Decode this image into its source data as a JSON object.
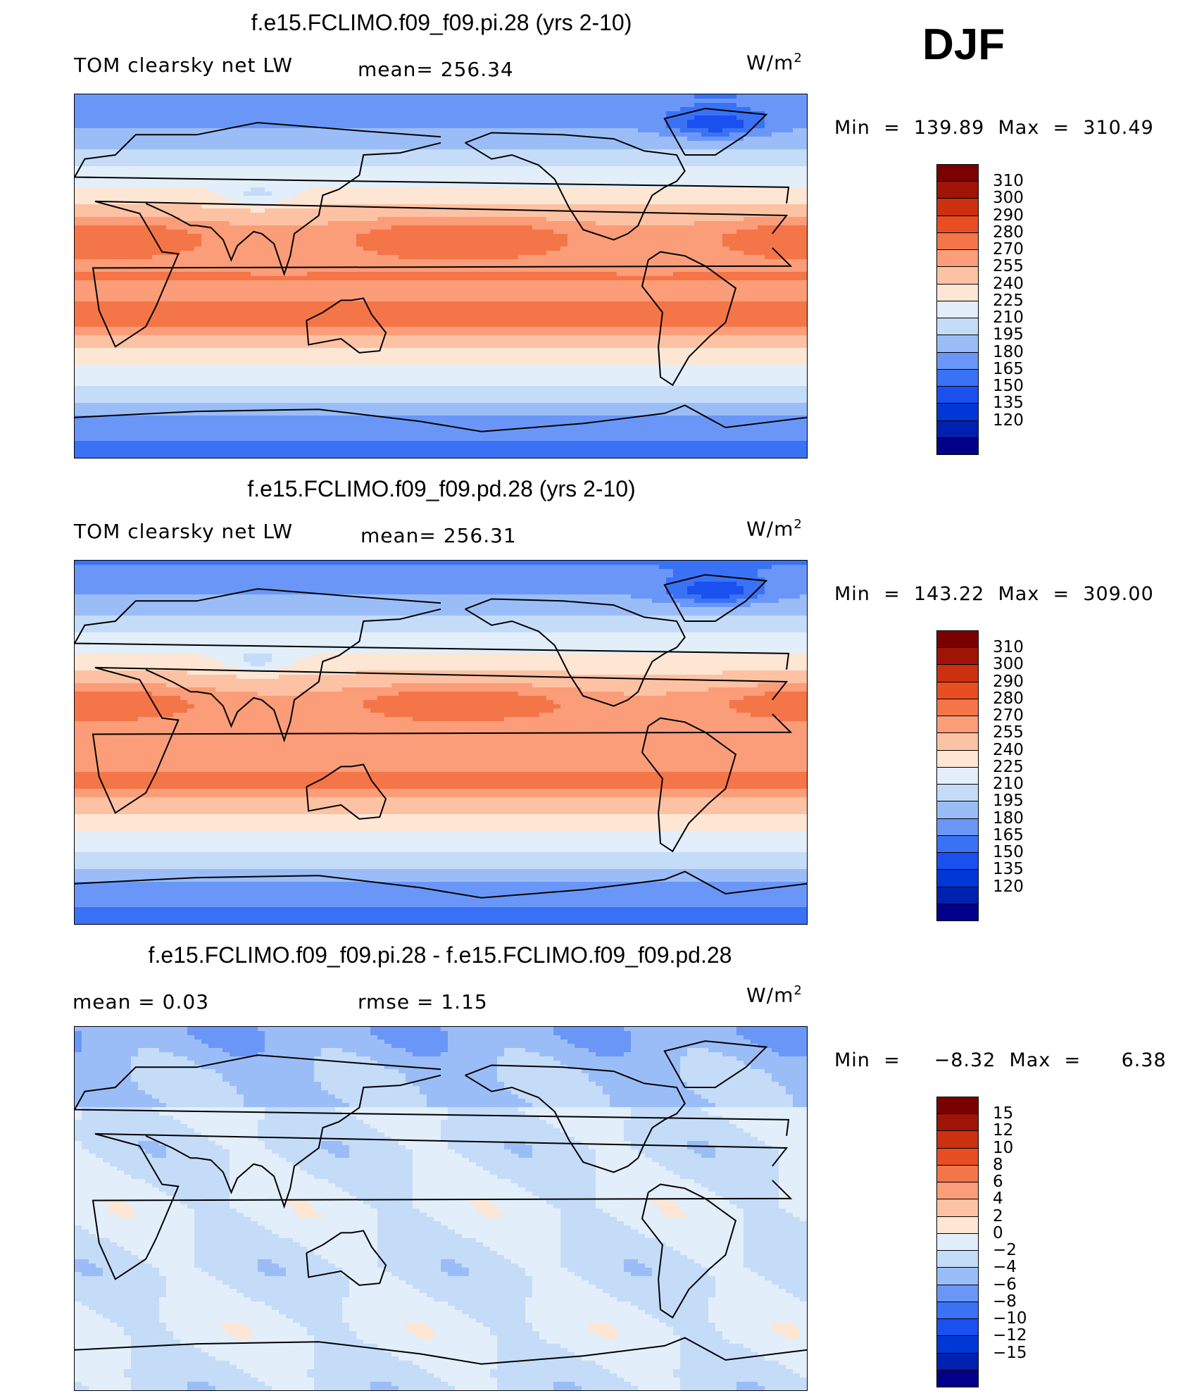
{
  "season": "DJF",
  "unit": "W/m",
  "unit_sup": "2",
  "panels": [
    {
      "title": "f.e15.FCLIMO.f09_f09.pi.28 (yrs 2-10)",
      "left_label": "TOM clearsky net LW",
      "mid_label": "mean= 256.34",
      "minmax": "Min  =  139.89  Max  =  310.49"
    },
    {
      "title": "f.e15.FCLIMO.f09_f09.pd.28 (yrs 2-10)",
      "left_label": "TOM clearsky net LW",
      "mid_label": "mean= 256.31",
      "minmax": "Min  =  143.22  Max  =  309.00"
    },
    {
      "title": "f.e15.FCLIMO.f09_f09.pi.28 - f.e15.FCLIMO.f09_f09.pd.28",
      "left_label": "mean  =      0.03",
      "mid_label": "rmse  =      1.15",
      "minmax": "Min  =     −8.32  Max  =      6.38"
    }
  ],
  "chart_data": [
    {
      "type": "heatmap",
      "title": "f.e15.FCLIMO.f09_f09.pi.28 (yrs 2-10)",
      "variable": "TOM clearsky net LW",
      "units": "W/m2",
      "mean": 256.34,
      "min": 139.89,
      "max": 310.49,
      "levels": [
        120,
        135,
        150,
        165,
        180,
        195,
        210,
        225,
        240,
        255,
        270,
        280,
        290,
        300,
        310
      ],
      "colors": [
        "#00008b",
        "#0020b0",
        "#0038d8",
        "#1a50f0",
        "#3a72f5",
        "#6a97f7",
        "#9bbdf7",
        "#c4dcf8",
        "#e2eefa",
        "#fde6d4",
        "#fcc2a3",
        "#fa9d78",
        "#f47548",
        "#e84e22",
        "#cc300e",
        "#9e1508",
        "#7a0000"
      ]
    },
    {
      "type": "heatmap",
      "title": "f.e15.FCLIMO.f09_f09.pd.28 (yrs 2-10)",
      "variable": "TOM clearsky net LW",
      "units": "W/m2",
      "mean": 256.31,
      "min": 143.22,
      "max": 309.0,
      "levels": [
        120,
        135,
        150,
        165,
        180,
        195,
        210,
        225,
        240,
        255,
        270,
        280,
        290,
        300,
        310
      ],
      "colors": [
        "#00008b",
        "#0020b0",
        "#0038d8",
        "#1a50f0",
        "#3a72f5",
        "#6a97f7",
        "#9bbdf7",
        "#c4dcf8",
        "#e2eefa",
        "#fde6d4",
        "#fcc2a3",
        "#fa9d78",
        "#f47548",
        "#e84e22",
        "#cc300e",
        "#9e1508",
        "#7a0000"
      ]
    },
    {
      "type": "heatmap",
      "title": "f.e15.FCLIMO.f09_f09.pi.28 - f.e15.FCLIMO.f09_f09.pd.28",
      "units": "W/m2",
      "mean": 0.03,
      "rmse": 1.15,
      "min": -8.32,
      "max": 6.38,
      "levels": [
        -15,
        -12,
        -10,
        -8,
        -6,
        -4,
        -2,
        0,
        2,
        4,
        6,
        8,
        10,
        12,
        15
      ],
      "colors": [
        "#00008b",
        "#0020b0",
        "#0038d8",
        "#1a50f0",
        "#3a72f5",
        "#6a97f7",
        "#9bbdf7",
        "#c4dcf8",
        "#e2eefa",
        "#fde6d4",
        "#fcc2a3",
        "#fa9d78",
        "#f47548",
        "#e84e22",
        "#cc300e",
        "#9e1508",
        "#7a0000"
      ]
    }
  ],
  "colorbar_labels": [
    [
      "310",
      "300",
      "290",
      "280",
      "270",
      "255",
      "240",
      "225",
      "210",
      "195",
      "180",
      "165",
      "150",
      "135",
      "120"
    ],
    [
      "310",
      "300",
      "290",
      "280",
      "270",
      "255",
      "240",
      "225",
      "210",
      "195",
      "180",
      "165",
      "150",
      "135",
      "120"
    ],
    [
      "15",
      "12",
      "10",
      "8",
      "6",
      "4",
      "2",
      "0",
      "−2",
      "−4",
      "−6",
      "−8",
      "−10",
      "−12",
      "−15"
    ]
  ]
}
